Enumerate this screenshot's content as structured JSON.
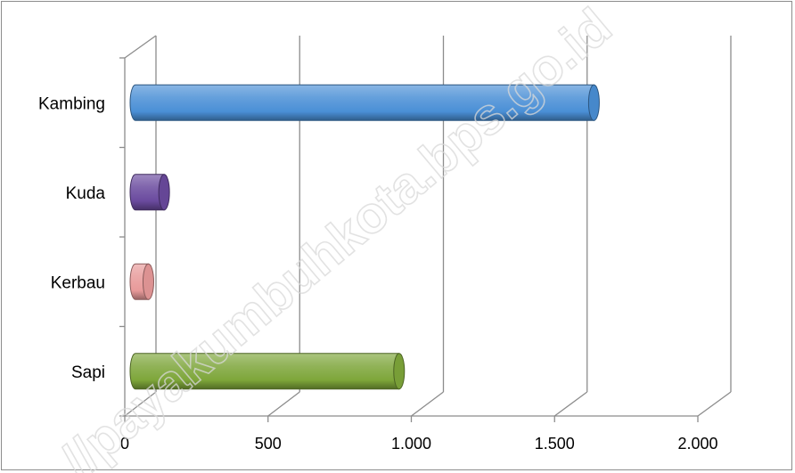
{
  "watermark": "//payakumbuhkota.bps.go.id",
  "chart_data": {
    "type": "bar",
    "orientation": "horizontal",
    "categories": [
      "Kambing",
      "Kuda",
      "Kerbau",
      "Sapi"
    ],
    "values": [
      1600,
      100,
      45,
      920
    ],
    "colors": [
      "#4a8fd6",
      "#6a4a9e",
      "#e89a9a",
      "#7ea63a"
    ],
    "xlim": [
      0,
      2000
    ],
    "xticks": [
      0,
      500,
      1000,
      1500,
      2000
    ],
    "xtick_labels": [
      "0",
      "500",
      "1.000",
      "1.500",
      "2.000"
    ],
    "grid": true,
    "legend": "none",
    "title": "",
    "xlabel": "",
    "ylabel": ""
  }
}
